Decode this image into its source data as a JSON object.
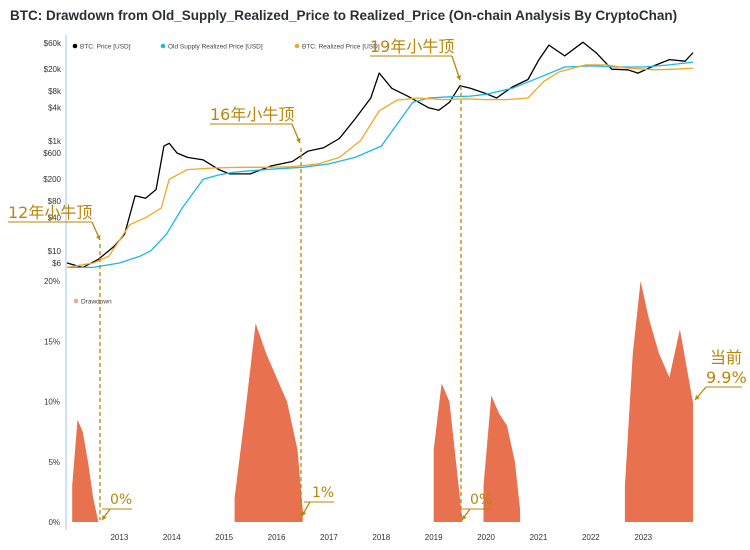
{
  "title": "BTC: Drawdown from Old_Supply_Realized_Price to Realized_Price (On-chain Analysis By CryptoChan)",
  "colors": {
    "price": "#000000",
    "old_supply": "#1ab8e8",
    "realized": "#f5a623",
    "drawdown": "#e8714f",
    "annot": "#b8860b"
  },
  "chart_data": [
    {
      "type": "line",
      "title": "BTC: Drawdown from Old_Supply_Realized_Price to Realized_Price (On-chain Analysis By CryptoChan)",
      "xlabel": "",
      "ylabel": "",
      "y_scale": "log",
      "y_ticks": [
        "$60k",
        "$20k",
        "$8k",
        "$4k",
        "$1k",
        "$600",
        "$200",
        "$80",
        "$40",
        "$10",
        "$6"
      ],
      "x_ticks": [
        "2013",
        "2014",
        "2015",
        "2016",
        "2017",
        "2018",
        "2019",
        "2020",
        "2021",
        "2022",
        "2023"
      ],
      "legend": [
        "BTC: Price [USD]",
        "Old Supply Realized Price [USD]",
        "BTC: Realized Price [USD]"
      ],
      "legend_placement": "top-left",
      "series": [
        {
          "name": "BTC: Price [USD]",
          "x": [
            2012.0,
            2012.3,
            2012.6,
            2012.9,
            2013.1,
            2013.3,
            2013.5,
            2013.7,
            2013.85,
            2013.95,
            2014.1,
            2014.3,
            2014.6,
            2014.9,
            2015.1,
            2015.5,
            2015.9,
            2016.3,
            2016.6,
            2016.9,
            2017.2,
            2017.5,
            2017.8,
            2017.96,
            2018.2,
            2018.5,
            2018.9,
            2019.1,
            2019.3,
            2019.5,
            2019.7,
            2020.0,
            2020.2,
            2020.5,
            2020.8,
            2021.0,
            2021.2,
            2021.5,
            2021.85,
            2022.1,
            2022.4,
            2022.7,
            2022.9,
            2023.2,
            2023.5,
            2023.8,
            2023.95
          ],
          "y": [
            6,
            5,
            7,
            12,
            20,
            100,
            90,
            130,
            800,
            900,
            600,
            500,
            450,
            300,
            250,
            250,
            350,
            420,
            650,
            750,
            1100,
            2500,
            6000,
            17000,
            9000,
            6500,
            4000,
            3600,
            5000,
            10000,
            9000,
            7200,
            6000,
            9500,
            13000,
            29000,
            55000,
            35000,
            62000,
            40000,
            20000,
            19500,
            17000,
            23000,
            30000,
            28000,
            40000
          ]
        },
        {
          "name": "Old Supply Realized Price [USD]",
          "x": [
            2012.0,
            2012.5,
            2013.0,
            2013.4,
            2013.6,
            2013.9,
            2014.2,
            2014.6,
            2014.9,
            2015.2,
            2015.6,
            2016.0,
            2016.5,
            2017.0,
            2017.5,
            2018.0,
            2018.3,
            2018.6,
            2018.9,
            2019.3,
            2019.7,
            2020.0,
            2020.5,
            2021.0,
            2021.5,
            2022.0,
            2022.5,
            2023.0,
            2023.5,
            2023.95
          ],
          "y": [
            5,
            5,
            6,
            8,
            10,
            20,
            60,
            200,
            240,
            270,
            290,
            310,
            330,
            380,
            500,
            800,
            2000,
            5000,
            6000,
            6300,
            6500,
            7000,
            9000,
            14000,
            22000,
            23000,
            22000,
            22000,
            24000,
            27000
          ]
        },
        {
          "name": "BTC: Realized Price [USD]",
          "x": [
            2012.0,
            2012.5,
            2012.8,
            2013.2,
            2013.5,
            2013.8,
            2013.95,
            2014.3,
            2014.8,
            2015.3,
            2015.8,
            2016.3,
            2016.8,
            2017.2,
            2017.6,
            2017.96,
            2018.3,
            2018.7,
            2019.2,
            2019.6,
            2020.0,
            2020.4,
            2020.8,
            2021.1,
            2021.4,
            2021.9,
            2022.3,
            2022.7,
            2023.2,
            2023.6,
            2023.95
          ],
          "y": [
            5,
            6,
            8,
            30,
            40,
            60,
            200,
            300,
            320,
            330,
            330,
            340,
            380,
            500,
            1000,
            3500,
            5500,
            6000,
            5600,
            5800,
            5600,
            5600,
            6000,
            12000,
            18000,
            24000,
            24000,
            21000,
            19500,
            20000,
            21000
          ]
        }
      ]
    },
    {
      "type": "area",
      "legend": [
        "Drawdown"
      ],
      "legend_placement": "top-left",
      "y_ticks": [
        "20%",
        "15%",
        "10%",
        "5%",
        "0%"
      ],
      "ylim": [
        0,
        20
      ],
      "x_ticks": [
        "2013",
        "2014",
        "2015",
        "2016",
        "2017",
        "2018",
        "2019",
        "2020",
        "2021",
        "2022",
        "2023"
      ],
      "series": [
        {
          "name": "Drawdown",
          "segments": [
            {
              "x": [
                2012.1,
                2012.2,
                2012.3,
                2012.4,
                2012.5,
                2012.6
              ],
              "y": [
                3,
                8.5,
                7.5,
                5,
                2,
                0
              ]
            },
            {
              "x": [
                2015.2,
                2015.4,
                2015.6,
                2015.8,
                2016.0,
                2016.2,
                2016.4,
                2016.5
              ],
              "y": [
                2,
                9,
                16.5,
                14,
                12,
                10,
                6,
                1
              ]
            },
            {
              "x": [
                2019.0,
                2019.15,
                2019.3,
                2019.45,
                2019.55
              ],
              "y": [
                6,
                11.5,
                10,
                4,
                0
              ]
            },
            {
              "x": [
                2019.95,
                2020.1,
                2020.25,
                2020.4,
                2020.55,
                2020.65
              ],
              "y": [
                3,
                10.5,
                9,
                8,
                5,
                1
              ]
            },
            {
              "x": [
                2022.65,
                2022.8,
                2022.95,
                2023.1,
                2023.3,
                2023.5,
                2023.7,
                2023.95
              ],
              "y": [
                3,
                14,
                20,
                17,
                14,
                12,
                16,
                9.9
              ]
            }
          ]
        }
      ]
    }
  ],
  "annotations": {
    "top_2012": "12年小牛顶",
    "top_2016": "16年小牛顶",
    "top_2019": "19年小牛顶",
    "dd_2012": "0%",
    "dd_2016": "1%",
    "dd_2019": "0%",
    "current_label": "当前",
    "current_value": "9.9%"
  }
}
